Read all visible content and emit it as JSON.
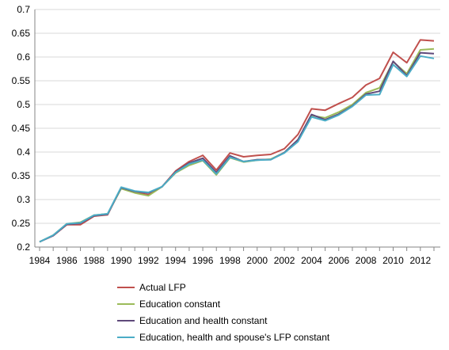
{
  "chart_data": {
    "type": "line",
    "title": "",
    "xlabel": "",
    "ylabel": "",
    "x": [
      1984,
      1985,
      1986,
      1987,
      1988,
      1989,
      1990,
      1991,
      1992,
      1993,
      1994,
      1995,
      1996,
      1997,
      1998,
      1999,
      2000,
      2001,
      2002,
      2003,
      2004,
      2005,
      2006,
      2007,
      2008,
      2009,
      2010,
      2011,
      2012,
      2013
    ],
    "xticks": [
      "1984",
      "1986",
      "1988",
      "1990",
      "1992",
      "1994",
      "1996",
      "1998",
      "2000",
      "2002",
      "2004",
      "2006",
      "2008",
      "2010",
      "2012"
    ],
    "xlim": [
      1984,
      2013
    ],
    "ylim": [
      0.2,
      0.7
    ],
    "yticks": [
      "0.2",
      "0.25",
      "0.3",
      "0.35",
      "0.4",
      "0.45",
      "0.5",
      "0.55",
      "0.6",
      "0.65",
      "0.7"
    ],
    "grid": "horizontal",
    "legend_position": "bottom",
    "series": [
      {
        "name": "Actual LFP",
        "color": "#c0504d",
        "values": [
          0.211,
          0.224,
          0.247,
          0.247,
          0.265,
          0.268,
          0.325,
          0.316,
          0.31,
          0.327,
          0.36,
          0.38,
          0.393,
          0.362,
          0.398,
          0.39,
          0.393,
          0.395,
          0.407,
          0.437,
          0.491,
          0.488,
          0.502,
          0.515,
          0.541,
          0.555,
          0.61,
          0.588,
          0.636,
          0.634
        ]
      },
      {
        "name": "Education constant",
        "color": "#9bbb59",
        "values": [
          0.211,
          0.225,
          0.249,
          0.252,
          0.267,
          0.27,
          0.323,
          0.314,
          0.308,
          0.327,
          0.356,
          0.372,
          0.382,
          0.352,
          0.388,
          0.379,
          0.383,
          0.385,
          0.399,
          0.425,
          0.477,
          0.472,
          0.484,
          0.5,
          0.525,
          0.535,
          0.59,
          0.565,
          0.615,
          0.617
        ]
      },
      {
        "name": "Education and health constant",
        "color": "#5f497a",
        "values": [
          0.211,
          0.224,
          0.248,
          0.25,
          0.266,
          0.269,
          0.325,
          0.317,
          0.314,
          0.327,
          0.358,
          0.377,
          0.387,
          0.357,
          0.392,
          0.38,
          0.384,
          0.384,
          0.399,
          0.426,
          0.479,
          0.468,
          0.48,
          0.497,
          0.522,
          0.528,
          0.591,
          0.561,
          0.609,
          0.607
        ]
      },
      {
        "name": "Education, health and spouse's LFP constant",
        "color": "#4bacc6",
        "values": [
          0.211,
          0.225,
          0.249,
          0.251,
          0.267,
          0.27,
          0.326,
          0.318,
          0.315,
          0.327,
          0.357,
          0.375,
          0.383,
          0.354,
          0.389,
          0.38,
          0.383,
          0.384,
          0.398,
          0.422,
          0.474,
          0.466,
          0.478,
          0.496,
          0.52,
          0.521,
          0.584,
          0.559,
          0.602,
          0.597
        ]
      }
    ]
  }
}
